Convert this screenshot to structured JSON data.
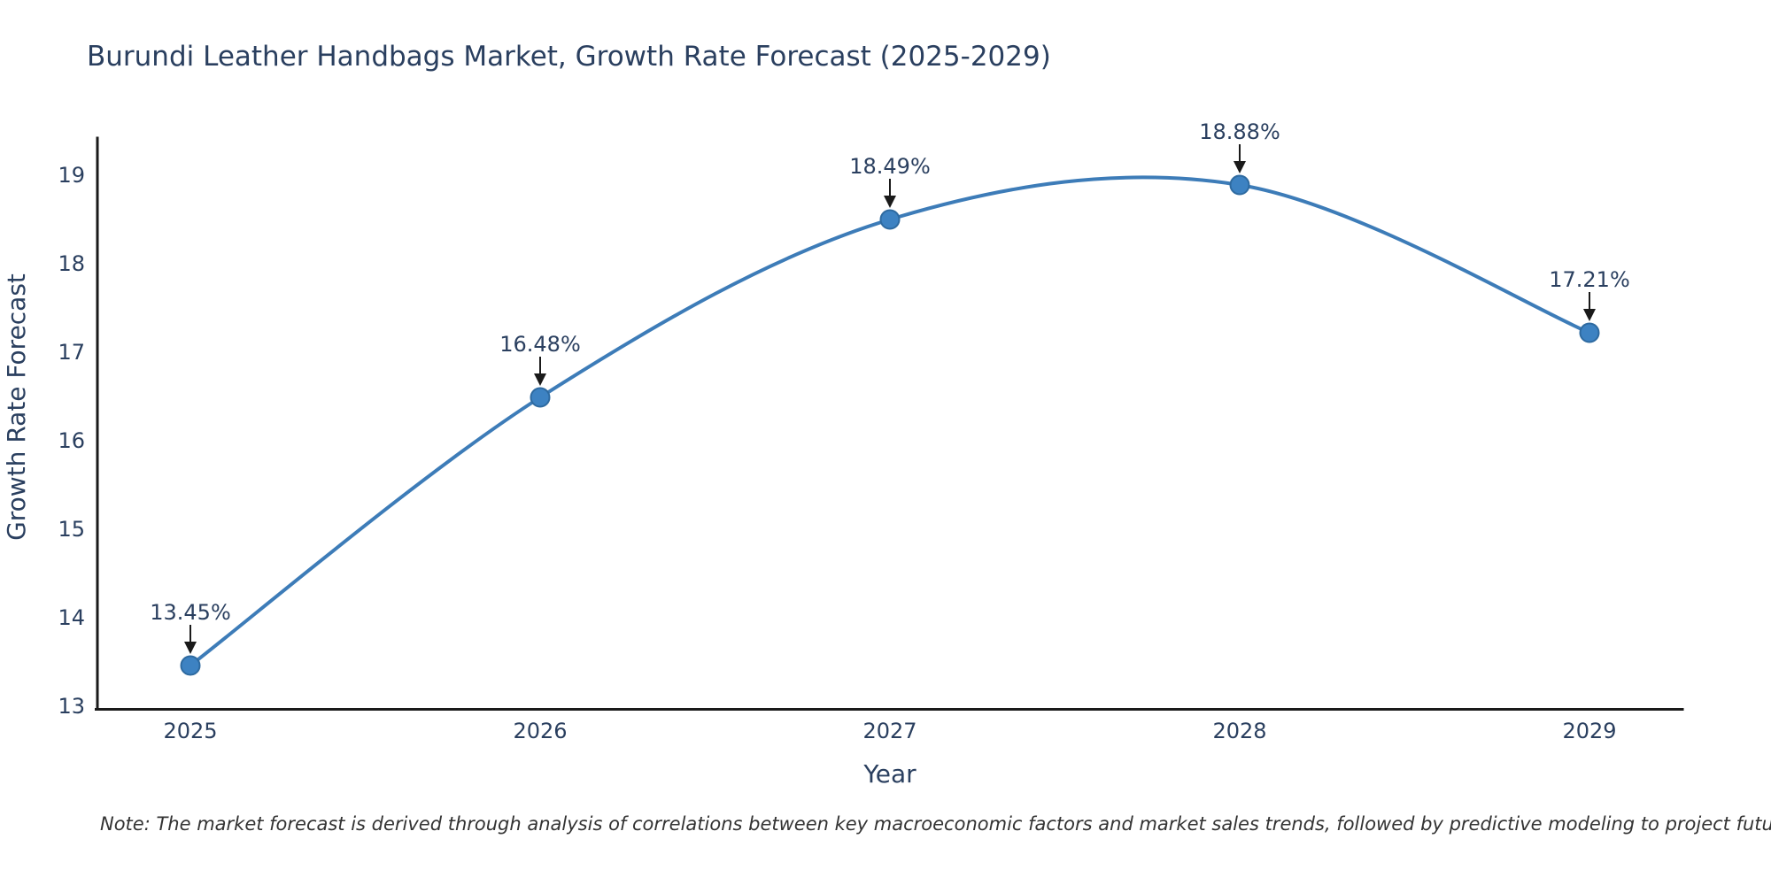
{
  "title": "Burundi Leather Handbags Market, Growth Rate Forecast (2025-2029)",
  "note": "Note: The market forecast is derived through analysis of correlations between key macroeconomic factors and market sales trends, followed by predictive modeling to project future sales.",
  "chart_data": {
    "type": "line",
    "title": "Burundi Leather Handbags Market, Growth Rate Forecast (2025-2029)",
    "x": [
      "2025",
      "2026",
      "2027",
      "2028",
      "2029"
    ],
    "y": [
      13.45,
      16.48,
      18.49,
      18.88,
      17.21
    ],
    "point_labels": [
      "13.45%",
      "16.48%",
      "18.49%",
      "18.88%",
      "17.21%"
    ],
    "xlabel": "Year",
    "ylabel": "Growth Rate Forecast",
    "yticks": [
      13,
      14,
      15,
      16,
      17,
      18,
      19
    ],
    "ylim": [
      13,
      19.45
    ],
    "grid": false,
    "legend": false,
    "line_shape": "spline",
    "line_color": "#3d7cb8",
    "marker_color": "#3d82c2",
    "marker_stroke": "#2e6aa0",
    "text_color": "#2a3f5f",
    "axis_color": "#1a1a1a",
    "arrow_color": "#1a1a1a",
    "note_color": "#333333"
  }
}
